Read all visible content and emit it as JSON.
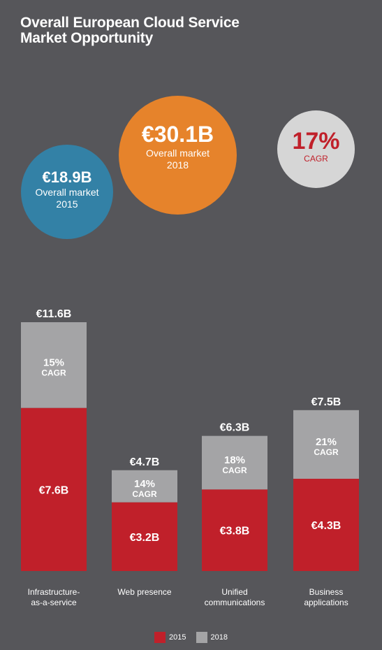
{
  "title_line1": "Overall European Cloud Service",
  "title_line2": "Market Opportunity",
  "bubbles": {
    "b2015": {
      "value": "€18.9B",
      "line1": "Overall market",
      "line2": "2015"
    },
    "b2018": {
      "value": "€30.1B",
      "line1": "Overall market",
      "line2": "2018"
    },
    "cagr": {
      "value": "17%",
      "label": "CAGR"
    }
  },
  "colors": {
    "c2015": "#c0202a",
    "c2018": "#a4a4a6",
    "text": "#ffffff"
  },
  "chart_data": {
    "type": "bar",
    "stacked": true,
    "categories": [
      [
        "Infrastructure-",
        "as-a-service"
      ],
      [
        "Web presence"
      ],
      [
        "Unified",
        "communications"
      ],
      [
        "Business",
        "applications"
      ]
    ],
    "series": [
      {
        "name": "2015",
        "values": [
          7.6,
          3.2,
          3.8,
          4.3
        ],
        "labels": [
          "€7.6B",
          "€3.2B",
          "€3.8B",
          "€4.3B"
        ]
      },
      {
        "name": "2018",
        "totals": [
          11.6,
          4.7,
          6.3,
          7.5
        ],
        "total_labels": [
          "€11.6B",
          "€4.7B",
          "€6.3B",
          "€7.5B"
        ]
      }
    ],
    "cagr": [
      {
        "pct": "15%",
        "label": "CAGR"
      },
      {
        "pct": "14%",
        "label": "CAGR"
      },
      {
        "pct": "18%",
        "label": "CAGR"
      },
      {
        "pct": "21%",
        "label": "CAGR"
      }
    ],
    "ylim": [
      0,
      11.6
    ]
  }
}
